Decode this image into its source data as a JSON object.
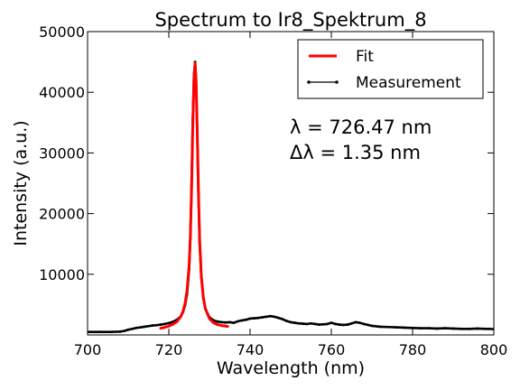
{
  "chart_data": {
    "type": "line",
    "title": "Spectrum to Ir8_Spektrum_8",
    "xlabel": "Wavelength (nm)",
    "ylabel": "Intensity (a.u.)",
    "xlim": [
      700,
      800
    ],
    "ylim": [
      0,
      50000
    ],
    "x_ticks": [
      700,
      720,
      740,
      760,
      780,
      800
    ],
    "y_ticks": [
      10000,
      20000,
      30000,
      40000,
      50000
    ],
    "x_tick_labels": [
      "700",
      "720",
      "740",
      "760",
      "780",
      "800"
    ],
    "y_tick_labels": [
      "10000",
      "20000",
      "30000",
      "40000",
      "50000"
    ],
    "grid": false,
    "legend": {
      "position": "top-right",
      "entries": [
        {
          "label": "Fit",
          "color": "#ff0000",
          "style": "line"
        },
        {
          "label": "Measurement",
          "color": "#000000",
          "style": "line-marker"
        }
      ]
    },
    "annotations": [
      {
        "text": "λ = 726.47 nm",
        "x": 737,
        "y": 34000
      },
      {
        "text": "Δλ = 1.35 nm",
        "x": 737,
        "y": 29500
      }
    ],
    "series": [
      {
        "name": "Measurement",
        "color": "#000000",
        "x": [
          700,
          703,
          706,
          708,
          709,
          710,
          711,
          712,
          713,
          714,
          715,
          716,
          717,
          718,
          719,
          720,
          721,
          722,
          723,
          723.5,
          724,
          724.5,
          725,
          725.3,
          725.6,
          725.9,
          726.2,
          726.47,
          726.7,
          727,
          727.3,
          727.6,
          728,
          728.5,
          729,
          730,
          731,
          732,
          733,
          734,
          735,
          736,
          737,
          738,
          739,
          740,
          741,
          742,
          743,
          744,
          745,
          746,
          747,
          748,
          749,
          750,
          751,
          752,
          753,
          754,
          755,
          756,
          757,
          758,
          759,
          760,
          761,
          762,
          763,
          764,
          765,
          766,
          767,
          768,
          769,
          770,
          772,
          774,
          776,
          778,
          780,
          782,
          784,
          786,
          788,
          790,
          792,
          794,
          796,
          798,
          799,
          800
        ],
        "y": [
          500,
          500,
          500,
          550,
          650,
          850,
          1000,
          1150,
          1250,
          1350,
          1450,
          1550,
          1600,
          1700,
          1800,
          1950,
          2150,
          2500,
          3100,
          3800,
          4900,
          6800,
          10800,
          16000,
          24500,
          35500,
          43000,
          45000,
          42000,
          33000,
          23000,
          15000,
          9500,
          6200,
          4300,
          2900,
          2400,
          2200,
          2100,
          2050,
          2100,
          2000,
          2250,
          2400,
          2500,
          2700,
          2750,
          2800,
          2900,
          3000,
          3100,
          3000,
          2800,
          2600,
          2300,
          2100,
          2000,
          1900,
          1850,
          1800,
          1900,
          1800,
          1700,
          1750,
          1800,
          2000,
          1800,
          1700,
          1650,
          1700,
          1900,
          2100,
          2000,
          1800,
          1650,
          1500,
          1350,
          1300,
          1250,
          1200,
          1150,
          1100,
          1100,
          1050,
          1100,
          1050,
          1000,
          1000,
          1050,
          1000,
          1000,
          950
        ]
      },
      {
        "name": "Fit",
        "color": "#ff0000",
        "x": [
          718,
          719,
          720,
          721,
          722,
          723,
          723.5,
          724,
          724.5,
          725,
          725.3,
          725.6,
          725.9,
          726.2,
          726.47,
          726.7,
          727,
          727.3,
          727.6,
          728,
          728.5,
          729,
          730,
          731,
          732,
          733,
          734,
          734.5
        ],
        "y": [
          1100,
          1250,
          1450,
          1750,
          2200,
          3100,
          3900,
          5200,
          7400,
          11500,
          16200,
          24000,
          34500,
          42500,
          44800,
          42200,
          33500,
          23500,
          15500,
          9700,
          6100,
          4300,
          2700,
          2000,
          1700,
          1550,
          1450,
          1400
        ]
      }
    ]
  }
}
